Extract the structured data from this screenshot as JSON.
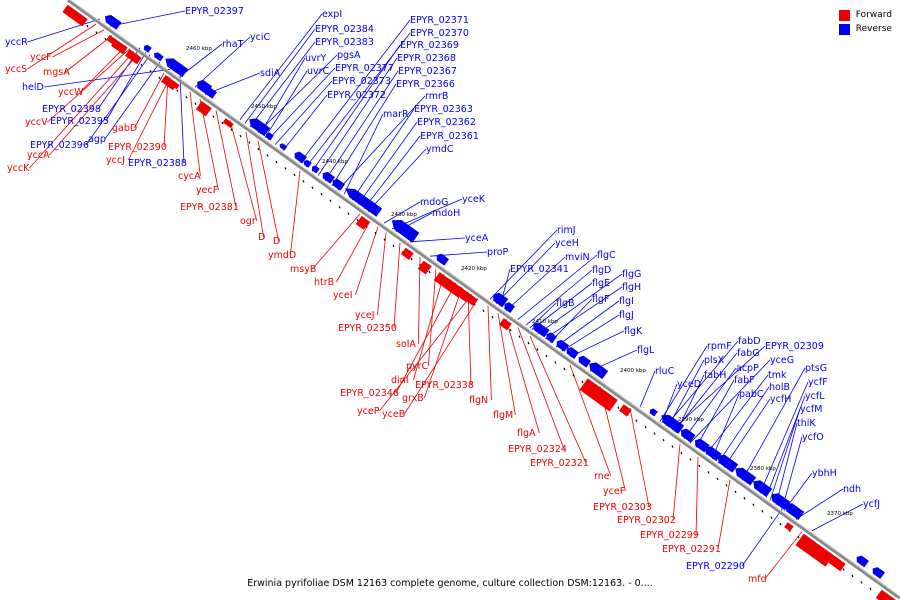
{
  "colors": {
    "forward": "#ee0000",
    "reverse": "#0000ee",
    "backbone": "#888888"
  },
  "legend": {
    "forward": "Forward",
    "reverse": "Reverse"
  },
  "caption": "Erwinia pyrifoliae DSM 12163 complete genome, culture collection DSM:12163. - 0....",
  "scale_ticks": [
    "2460 kbp",
    "2450 kbp",
    "2440 kbp",
    "2430 kbp",
    "2420 kbp",
    "2410 kbp",
    "2400 kbp",
    "2390 kbp",
    "2380 kbp",
    "2370 kbp"
  ],
  "reverse_genes": [
    "yccR",
    "EPYR_02397",
    "rhaT",
    "yciC",
    "helD",
    "sdiA",
    "expI",
    "EPYR_02384",
    "EPYR_02383",
    "uvrY",
    "uvrC",
    "pgsA",
    "EPYR_02377",
    "EPYR_02373",
    "EPYR_02372",
    "EPYR_02371",
    "EPYR_02370",
    "EPYR_02369",
    "EPYR_02368",
    "EPYR_02367",
    "EPYR_02366",
    "rmrB",
    "marR",
    "EPYR_02363",
    "EPYR_02362",
    "EPYR_02361",
    "ymdC",
    "EPYR_02398",
    "EPYR_02395",
    "agp",
    "EPYR_02396",
    "EPYR_02388",
    "yceK",
    "mdoG",
    "mdoH",
    "yceA",
    "proP",
    "rimJ",
    "yceH",
    "mviN",
    "flgC",
    "EPYR_02341",
    "flgD",
    "flgE",
    "flgG",
    "flgH",
    "flgF",
    "flgI",
    "flgB",
    "flgJ",
    "flgK",
    "flgL",
    "rluC",
    "rpmF",
    "fabD",
    "EPYR_02309",
    "plsX",
    "fabG",
    "yceG",
    "yceD",
    "fabH",
    "acpP",
    "fabF",
    "ptsG",
    "tmk",
    "pabC",
    "holB",
    "ycfF",
    "ycfH",
    "ycfL",
    "ycfM",
    "thiK",
    "ycfO",
    "ybhH",
    "ndh",
    "ycfJ",
    "EPYR_02290"
  ],
  "forward_genes": [
    "yccS",
    "yccF",
    "mgsA",
    "yccW",
    "yccV",
    "gabD",
    "yccA",
    "yccJ",
    "EPYR_02390",
    "yccK",
    "cycA",
    "yecF",
    "EPYR_02381",
    "ogr",
    "D",
    "D",
    "ymdD",
    "msyB",
    "htrB",
    "yceI",
    "yceJ",
    "EPYR_02350",
    "solA",
    "pyrC",
    "dinI",
    "EPYR_02346",
    "grxB",
    "EPYR_02338",
    "yceP",
    "yceB",
    "flgN",
    "flgM",
    "flgA",
    "EPYR_02324",
    "EPYR_02321",
    "rne",
    "yceF",
    "EPYR_02303",
    "EPYR_02302",
    "EPYR_02299",
    "EPYR_02291",
    "mfd"
  ]
}
